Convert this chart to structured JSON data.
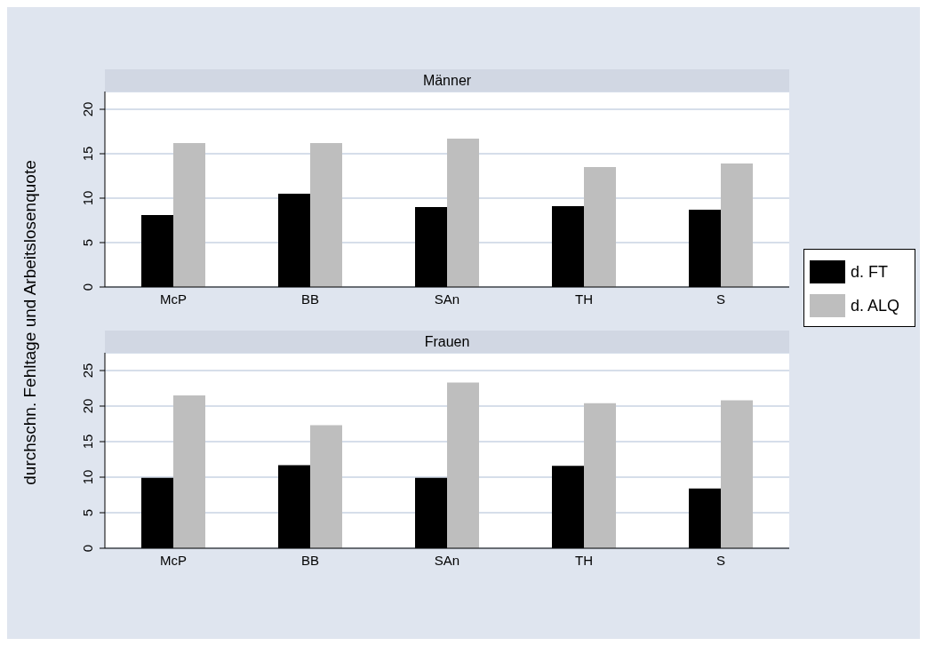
{
  "chart_data": [
    {
      "type": "bar",
      "title": "Männer",
      "ylabel": "durchschn. Fehltage und Arbeitslosenquote",
      "categories": [
        "McP",
        "BB",
        "SAn",
        "TH",
        "S"
      ],
      "series": [
        {
          "name": "d. FT",
          "color": "#000000",
          "values": [
            8.1,
            10.5,
            9.0,
            9.1,
            8.7
          ]
        },
        {
          "name": "d. ALQ",
          "color": "#bebebe",
          "values": [
            16.2,
            16.2,
            16.7,
            13.5,
            13.9
          ]
        }
      ],
      "ylim": [
        0,
        22
      ],
      "yticks": [
        0,
        5,
        10,
        15,
        20
      ],
      "grid": "y",
      "legend": "right"
    },
    {
      "type": "bar",
      "title": "Frauen",
      "categories": [
        "McP",
        "BB",
        "SAn",
        "TH",
        "S"
      ],
      "series": [
        {
          "color": "#000000",
          "values": [
            9.9,
            11.7,
            9.9,
            11.6,
            8.4
          ]
        },
        {
          "color": "#bebebe",
          "values": [
            21.5,
            17.3,
            23.3,
            20.4,
            20.8
          ]
        }
      ],
      "ylim": [
        0,
        27.5
      ],
      "yticks": [
        0,
        5,
        10,
        15,
        20,
        25
      ],
      "grid": "y"
    }
  ]
}
